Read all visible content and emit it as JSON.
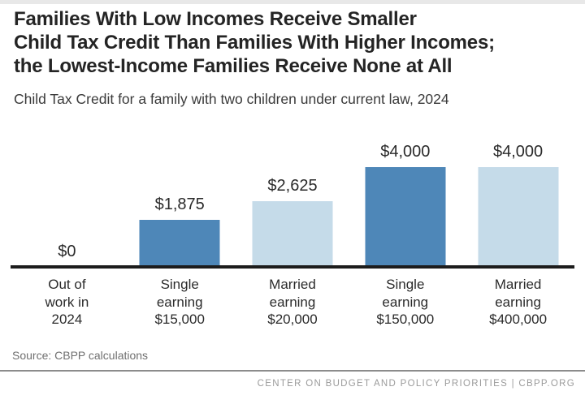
{
  "page": {
    "title_lines": [
      "Families With Low Incomes Receive Smaller",
      "Child Tax Credit Than Families With Higher Incomes;",
      "the Lowest-Income Families Receive None at All"
    ],
    "subtitle": "Child Tax Credit for a family with two children under current law, 2024",
    "source": "Source: CBPP calculations",
    "footer": "CENTER ON BUDGET AND POLICY PRIORITIES | CBPP.ORG"
  },
  "colors": {
    "bar_dark": "#4e87b8",
    "bar_light": "#c5dbe9",
    "axis": "#1c1c1c",
    "top_strip": "#e8e8e8"
  },
  "chart_data": {
    "type": "bar",
    "title": "Families With Low Incomes Receive Smaller Child Tax Credit Than Families With Higher Incomes; the Lowest-Income Families Receive None at All",
    "subtitle": "Child Tax Credit for a family with two children under current law, 2024",
    "categories": [
      "Out of\nwork in\n2024",
      "Single\nearning\n$15,000",
      "Married\nearning\n$20,000",
      "Single\nearning\n$150,000",
      "Married\nearning\n$400,000"
    ],
    "values": [
      0,
      1875,
      2625,
      4000,
      4000
    ],
    "value_labels": [
      "$0",
      "$1,875",
      "$2,625",
      "$4,000",
      "$4,000"
    ],
    "bar_colors": [
      "#4e87b8",
      "#4e87b8",
      "#c5dbe9",
      "#4e87b8",
      "#c5dbe9"
    ],
    "xlabel": "",
    "ylabel": "",
    "ylim": [
      0,
      4000
    ],
    "grid": false,
    "legend": "none"
  }
}
